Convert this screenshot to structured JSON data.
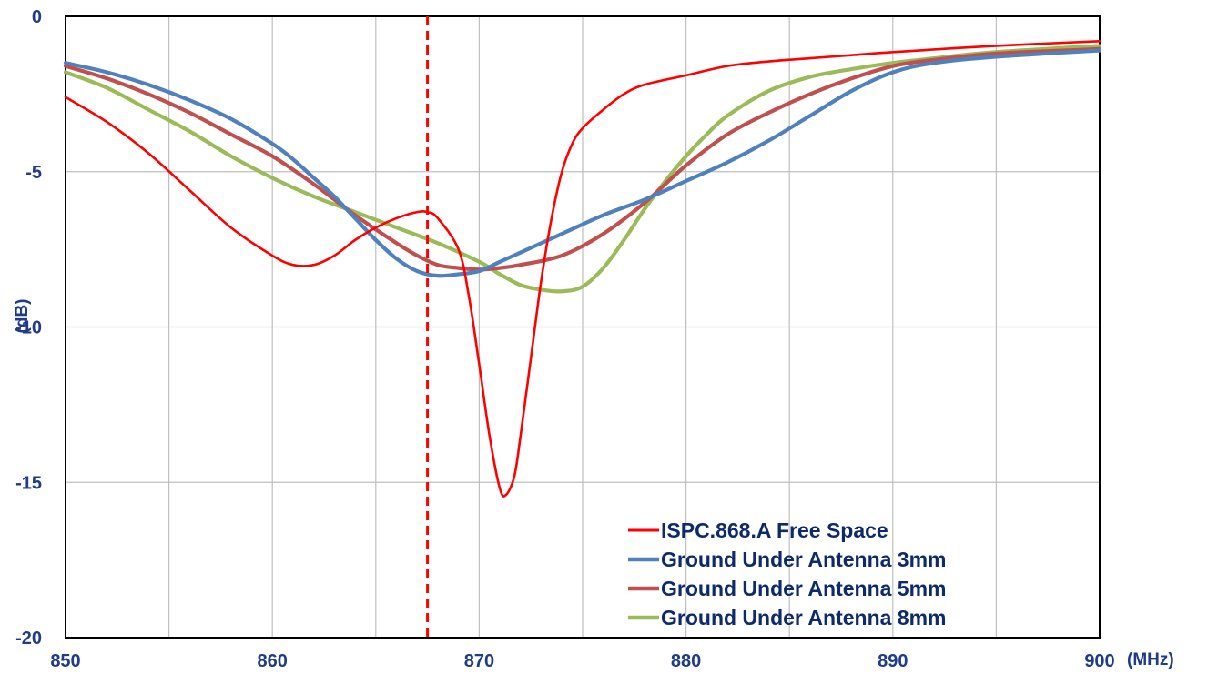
{
  "chart_data": {
    "type": "line",
    "title": "",
    "xlabel": "(MHz)",
    "ylabel": "(dB)",
    "xlim": [
      850,
      900
    ],
    "ylim": [
      -20,
      0
    ],
    "x_ticks": [
      850,
      860,
      870,
      880,
      890,
      900
    ],
    "y_ticks": [
      0,
      -5,
      -10,
      -15,
      -20
    ],
    "x_tick_labels": [
      "850",
      "860",
      "870",
      "880",
      "890",
      "900"
    ],
    "y_tick_labels": [
      "0",
      "-5",
      "-10",
      "-15",
      "-20"
    ],
    "grid": true,
    "legend_position": "bottom-right",
    "marker_line": {
      "x": 867.5,
      "color": "#ff0000",
      "style": "dashed"
    },
    "series": [
      {
        "name": "ISPC.868.A Free Space",
        "color": "#ff0000",
        "x": [
          850,
          852,
          854,
          856,
          858,
          860,
          861,
          862,
          863,
          864,
          865,
          866,
          867,
          867.5,
          868,
          869,
          869.5,
          870,
          870.5,
          871,
          871.3,
          871.7,
          872,
          872.5,
          873,
          873.5,
          874,
          874.5,
          875,
          876,
          877,
          878,
          880,
          882,
          884,
          886,
          888,
          890,
          895,
          900
        ],
        "values": [
          -2.6,
          -3.4,
          -4.4,
          -5.6,
          -6.8,
          -7.7,
          -8.0,
          -8.0,
          -7.7,
          -7.2,
          -6.8,
          -6.5,
          -6.3,
          -6.3,
          -6.5,
          -7.5,
          -9.0,
          -11.2,
          -13.5,
          -15.2,
          -15.4,
          -14.8,
          -13.5,
          -11.0,
          -8.5,
          -6.5,
          -5.0,
          -4.1,
          -3.6,
          -3.0,
          -2.5,
          -2.2,
          -1.9,
          -1.6,
          -1.45,
          -1.35,
          -1.25,
          -1.15,
          -0.95,
          -0.8
        ]
      },
      {
        "name": "Ground Under Antenna 3mm",
        "color": "#4f81bd",
        "x": [
          850,
          852,
          854,
          856,
          858,
          860,
          861,
          862,
          863,
          864,
          865,
          866,
          867,
          868,
          869,
          870,
          871,
          872,
          874,
          876,
          878,
          880,
          882,
          884,
          886,
          888,
          890,
          892,
          895,
          900
        ],
        "values": [
          -1.5,
          -1.8,
          -2.2,
          -2.7,
          -3.3,
          -4.1,
          -4.6,
          -5.2,
          -5.8,
          -6.5,
          -7.2,
          -7.8,
          -8.2,
          -8.35,
          -8.3,
          -8.2,
          -7.9,
          -7.6,
          -7.0,
          -6.4,
          -5.9,
          -5.3,
          -4.7,
          -4.0,
          -3.2,
          -2.4,
          -1.8,
          -1.5,
          -1.3,
          -1.1
        ]
      },
      {
        "name": "Ground Under Antenna 5mm",
        "color": "#c0504d",
        "x": [
          850,
          852,
          854,
          856,
          858,
          860,
          862,
          864,
          866,
          867,
          868,
          869,
          870,
          871,
          872,
          874,
          876,
          878,
          880,
          882,
          884,
          886,
          888,
          890,
          892,
          895,
          900
        ],
        "values": [
          -1.6,
          -2.0,
          -2.5,
          -3.1,
          -3.8,
          -4.5,
          -5.4,
          -6.4,
          -7.3,
          -7.7,
          -8.0,
          -8.1,
          -8.15,
          -8.1,
          -8.0,
          -7.7,
          -7.0,
          -6.0,
          -4.8,
          -3.8,
          -3.1,
          -2.5,
          -2.0,
          -1.6,
          -1.4,
          -1.2,
          -1.05
        ]
      },
      {
        "name": "Ground Under Antenna 8mm",
        "color": "#9bbb59",
        "x": [
          850,
          852,
          854,
          856,
          858,
          860,
          862,
          864,
          866,
          868,
          870,
          871,
          872,
          873,
          874,
          875,
          876,
          877,
          878,
          879,
          880,
          881,
          882,
          884,
          886,
          888,
          890,
          892,
          895,
          900
        ],
        "values": [
          -1.8,
          -2.3,
          -3.0,
          -3.7,
          -4.5,
          -5.2,
          -5.8,
          -6.3,
          -6.8,
          -7.3,
          -7.9,
          -8.3,
          -8.65,
          -8.8,
          -8.85,
          -8.7,
          -8.1,
          -7.2,
          -6.2,
          -5.3,
          -4.5,
          -3.8,
          -3.2,
          -2.4,
          -1.95,
          -1.7,
          -1.5,
          -1.35,
          -1.15,
          -0.95
        ]
      }
    ]
  }
}
